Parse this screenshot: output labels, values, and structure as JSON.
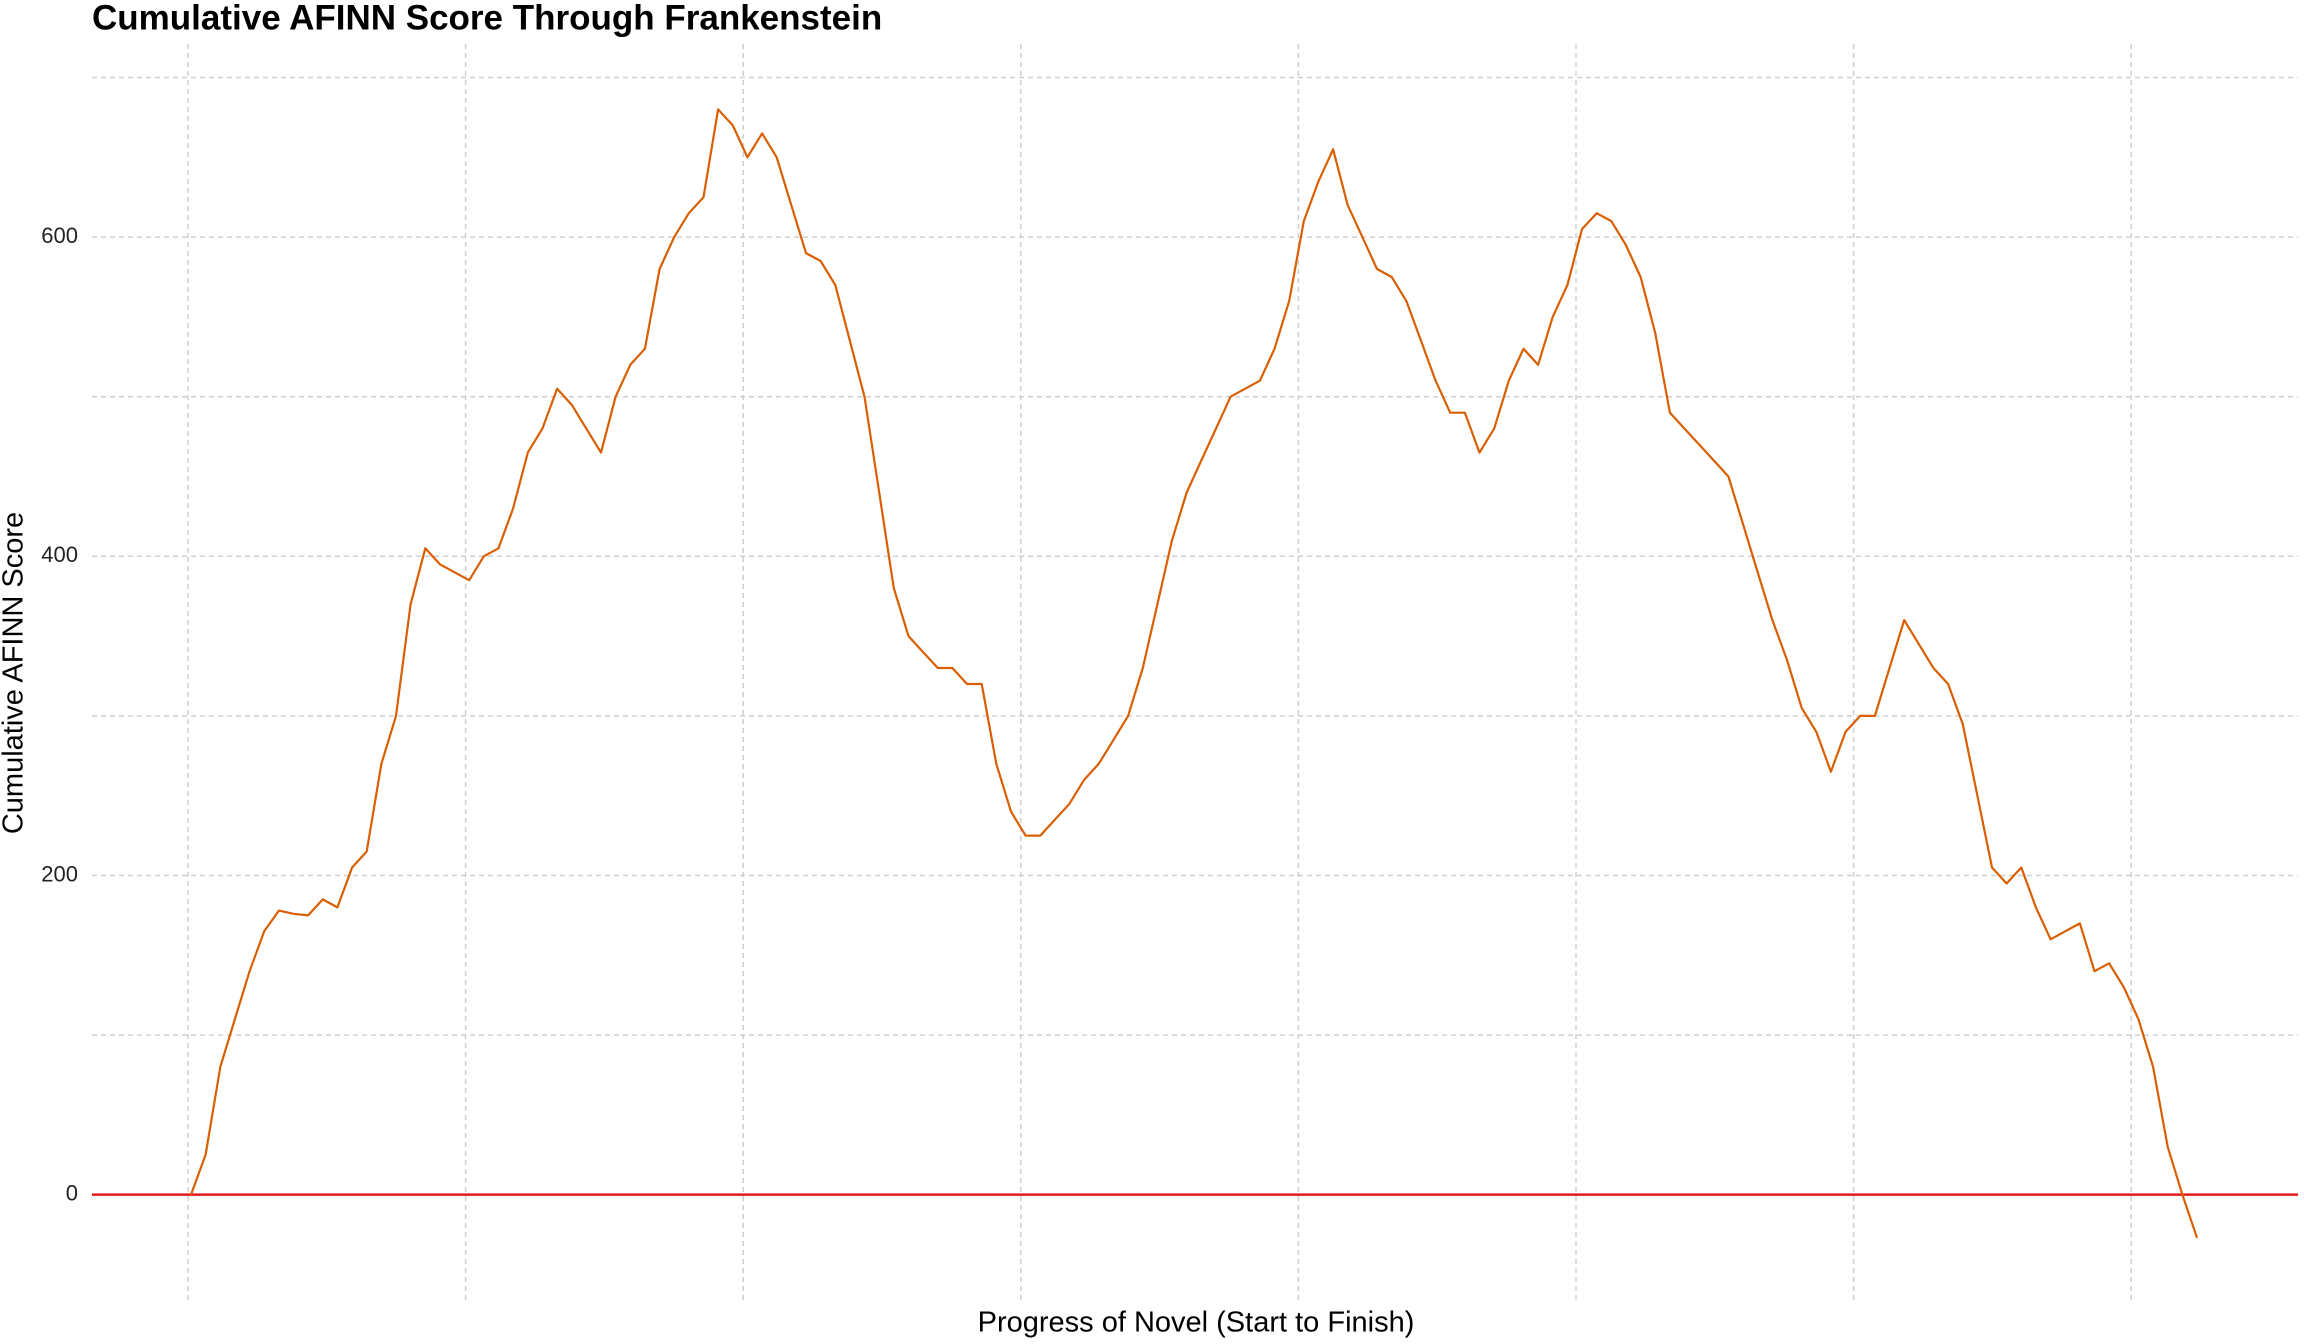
{
  "chart_data": {
    "type": "line",
    "title": "Cumulative AFINN Score Through Frankenstein",
    "xlabel": "Progress of Novel (Start to Finish)",
    "ylabel": "Cumulative AFINN Score",
    "color": "#d95f02",
    "ylim": [
      -66,
      721
    ],
    "yticks": [
      0,
      200,
      400,
      600
    ],
    "yminor": [
      100,
      300,
      500,
      700
    ],
    "grid": true,
    "hline": 0,
    "hline_color": "#e41a1c",
    "values": [
      0,
      25,
      80,
      110,
      140,
      165,
      178,
      176,
      175,
      185,
      180,
      205,
      215,
      270,
      300,
      370,
      405,
      395,
      390,
      385,
      400,
      405,
      430,
      465,
      480,
      505,
      495,
      480,
      465,
      500,
      520,
      530,
      580,
      600,
      615,
      625,
      680,
      670,
      650,
      665,
      650,
      620,
      590,
      585,
      570,
      535,
      500,
      440,
      380,
      350,
      340,
      330,
      330,
      320,
      320,
      270,
      240,
      225,
      225,
      235,
      245,
      260,
      270,
      285,
      300,
      330,
      370,
      410,
      440,
      460,
      480,
      500,
      505,
      510,
      530,
      560,
      610,
      635,
      655,
      620,
      600,
      580,
      575,
      560,
      535,
      510,
      490,
      490,
      465,
      480,
      510,
      530,
      520,
      550,
      570,
      605,
      615,
      610,
      595,
      575,
      540,
      490,
      480,
      470,
      460,
      450,
      420,
      390,
      360,
      335,
      305,
      290,
      265,
      290,
      300,
      300,
      330,
      360,
      345,
      330,
      320,
      295,
      250,
      205,
      195,
      205,
      180,
      160,
      165,
      170,
      140,
      145,
      130,
      110,
      80,
      30,
      0,
      -27
    ]
  }
}
